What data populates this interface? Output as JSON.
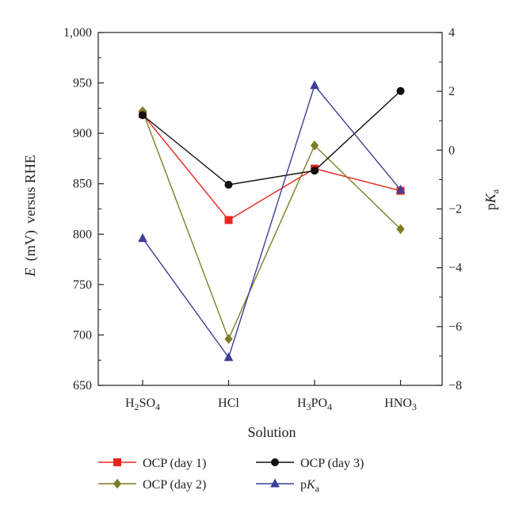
{
  "chart_data": {
    "type": "line",
    "categories": [
      "H2SO4",
      "HCl",
      "H3PO4",
      "HNO3"
    ],
    "category_labels": [
      {
        "parts": [
          {
            "t": "H"
          },
          {
            "t": "2",
            "sub": true
          },
          {
            "t": "SO"
          },
          {
            "t": "4",
            "sub": true
          }
        ]
      },
      {
        "parts": [
          {
            "t": "HCl"
          }
        ]
      },
      {
        "parts": [
          {
            "t": "H"
          },
          {
            "t": "3",
            "sub": true
          },
          {
            "t": "PO"
          },
          {
            "t": "4",
            "sub": true
          }
        ]
      },
      {
        "parts": [
          {
            "t": "HNO"
          },
          {
            "t": "3",
            "sub": true
          }
        ]
      }
    ],
    "xlabel": "Solution",
    "ylabel": "versus RHE",
    "ylabel_italic": "E",
    "ylabel_unit": "(mV)",
    "y2label": "p",
    "y2label_italic": "K",
    "y2label_sub": "a",
    "ylim": [
      650,
      1000
    ],
    "y2lim": [
      -8,
      4
    ],
    "yticks": [
      650,
      700,
      750,
      800,
      850,
      900,
      950,
      1000
    ],
    "ytick_labels": [
      "650",
      "700",
      "750",
      "800",
      "850",
      "900",
      "950",
      "1,000"
    ],
    "y2ticks": [
      -8,
      -6,
      -4,
      -2,
      0,
      2,
      4
    ],
    "y2tick_labels": [
      "−8",
      "−6",
      "−4",
      "−2",
      "0",
      "2",
      "4"
    ],
    "grid": false,
    "legend_position": "bottom",
    "series": [
      {
        "name": "OCP (day 1)",
        "axis": "left",
        "color": "#e8261f",
        "marker": "square",
        "values": [
          919,
          814,
          865,
          843
        ]
      },
      {
        "name": "OCP (day 2)",
        "axis": "left",
        "color": "#7d7d27",
        "marker": "diamond",
        "values": [
          922,
          696,
          888,
          805
        ]
      },
      {
        "name": "OCP (day 3)",
        "axis": "left",
        "color": "#111111",
        "marker": "circle",
        "values": [
          918,
          849,
          863,
          942
        ]
      },
      {
        "name": "pKa",
        "legend_name_parts": [
          {
            "t": "p"
          },
          {
            "t": "K",
            "italic": true
          },
          {
            "t": "a",
            "sub": true
          }
        ],
        "axis": "right",
        "color": "#3b3f98",
        "marker": "triangle",
        "values": [
          -3.0,
          -7.05,
          2.2,
          -1.35
        ]
      }
    ]
  }
}
